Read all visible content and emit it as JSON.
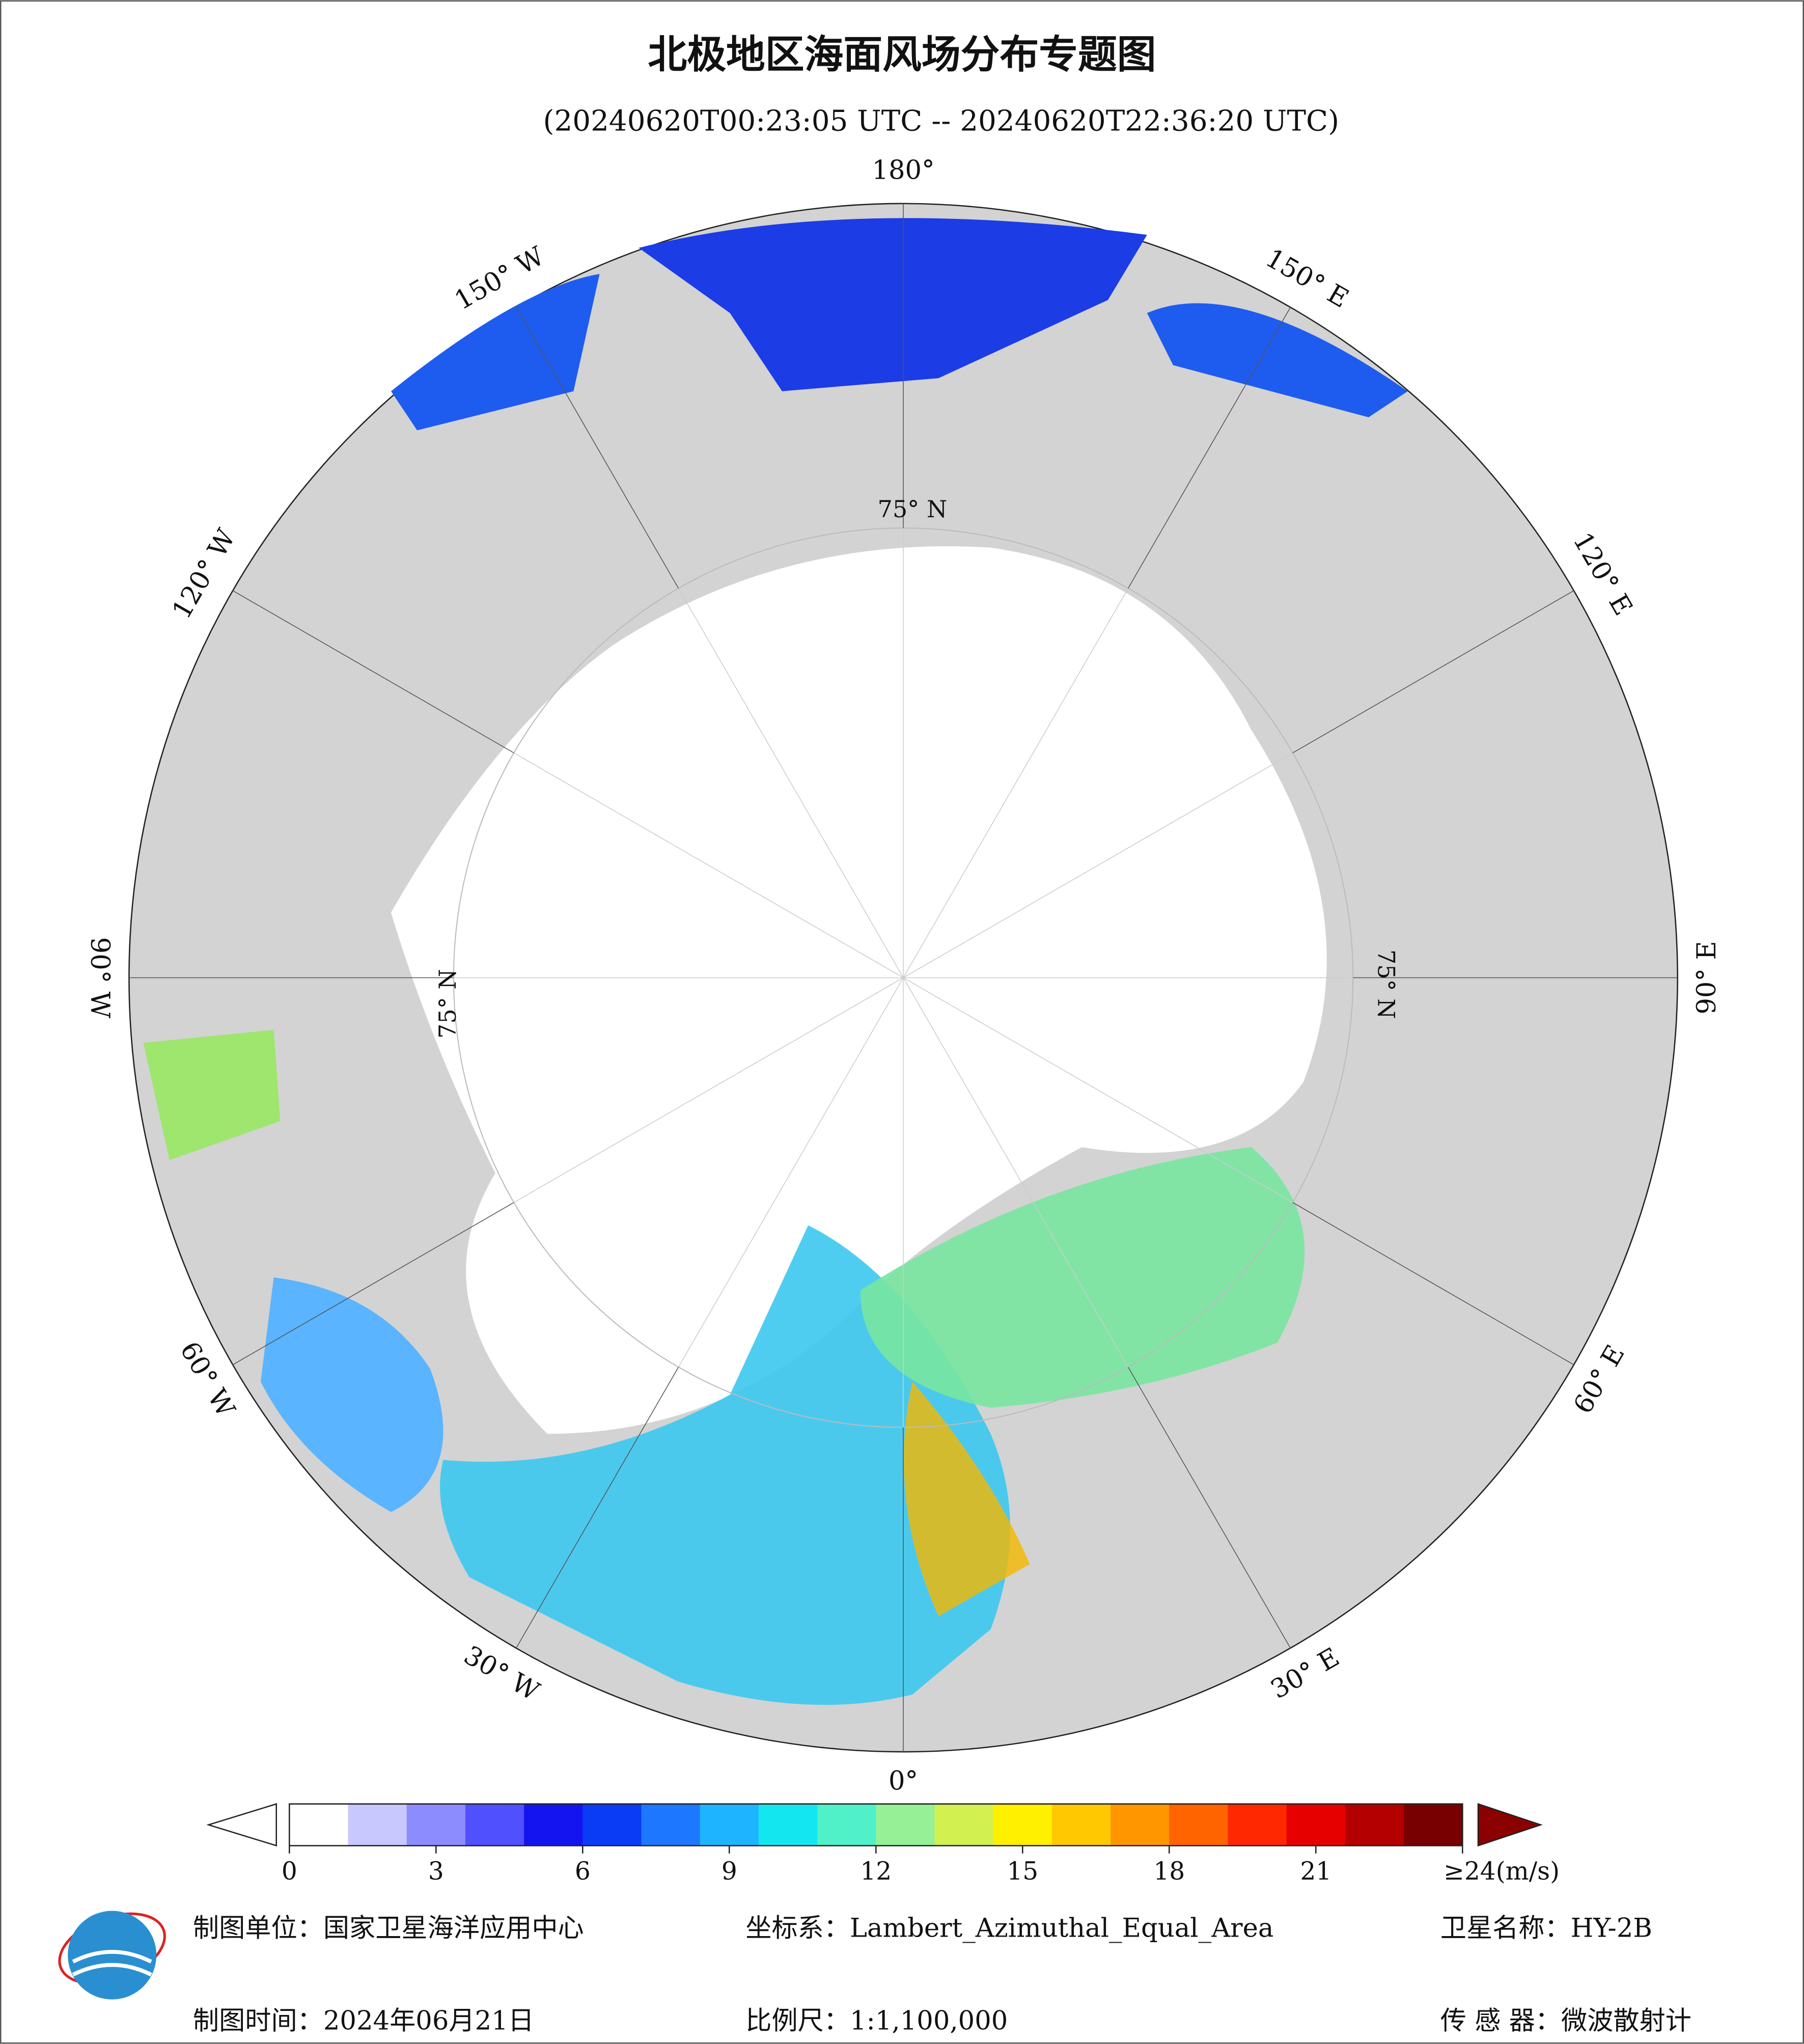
{
  "title": "北极地区海面风场分布专题图",
  "subtitle": "(20240620T00:23:05 UTC -- 20240620T22:36:20 UTC)",
  "meridian_labels": [
    "0°",
    "30° E",
    "60° E",
    "90° E",
    "120° E",
    "150° E",
    "180°",
    "150° W",
    "120° W",
    "90° W",
    "60° W",
    "30° W"
  ],
  "parallel_labels": [
    "75° N",
    "75° N",
    "75° N"
  ],
  "colorbar": {
    "range": [
      0,
      24
    ],
    "ticks": [
      0,
      3,
      6,
      9,
      12,
      15,
      18,
      21,
      {
        "value": 24,
        "label": "≥24(m/s)"
      }
    ],
    "colors": [
      "#ffffff",
      "#c8c8ff",
      "#8c8cff",
      "#5050ff",
      "#1414f0",
      "#0a3cf5",
      "#1e78ff",
      "#1eb4ff",
      "#14e6f0",
      "#50f0c8",
      "#96f096",
      "#d2f050",
      "#fff000",
      "#ffc800",
      "#ff9600",
      "#ff6400",
      "#ff2800",
      "#e60000",
      "#b40000",
      "#780000"
    ]
  },
  "footer": {
    "unit": "制图单位：国家卫星海洋应用中心",
    "crs": "坐标系：Lambert_Azimuthal_Equal_Area",
    "satellite": "卫星名称：HY-2B",
    "date": "制图时间：2024年06月21日",
    "scale": "比例尺：1:1,100,000",
    "sensor": "传 感 器：微波散射计"
  }
}
